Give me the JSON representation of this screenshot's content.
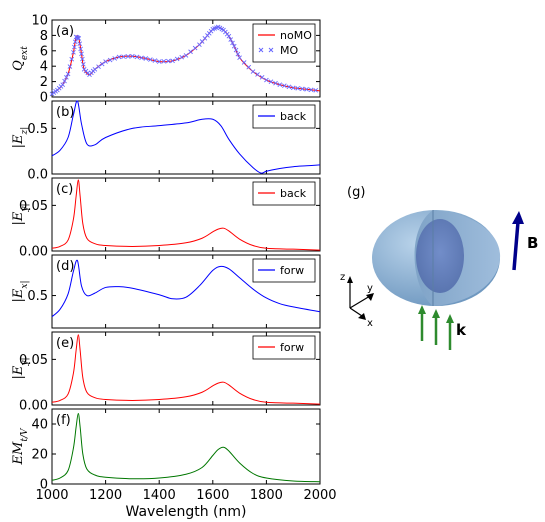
{
  "chart_data": [
    {
      "type": "line",
      "panel": "(a)",
      "ylabel": "Q_ext",
      "ylim": [
        0,
        10
      ],
      "yticks": [
        0,
        2,
        4,
        6,
        8,
        10
      ],
      "xlim": [
        1000,
        2000
      ],
      "legend": "top-right",
      "series": [
        {
          "name": "noMO",
          "style": "line",
          "color": "#ff0000",
          "x": [
            1000,
            1020,
            1040,
            1060,
            1080,
            1090,
            1100,
            1110,
            1120,
            1140,
            1160,
            1200,
            1250,
            1300,
            1350,
            1400,
            1450,
            1500,
            1550,
            1580,
            1600,
            1620,
            1640,
            1660,
            1680,
            1700,
            1750,
            1800,
            1850,
            1900,
            1950,
            2000
          ],
          "y": [
            0.4,
            0.9,
            1.6,
            3.0,
            5.8,
            7.8,
            7.6,
            5.6,
            3.6,
            2.9,
            3.6,
            4.6,
            5.2,
            5.3,
            5.0,
            4.6,
            4.7,
            5.4,
            6.8,
            8.0,
            8.8,
            9.1,
            8.7,
            7.9,
            6.6,
            5.1,
            3.3,
            2.2,
            1.6,
            1.2,
            1.0,
            0.8
          ]
        },
        {
          "name": "MO",
          "style": "markers",
          "color": "#6666ff",
          "x": [
            1000,
            1020,
            1040,
            1060,
            1080,
            1090,
            1100,
            1110,
            1120,
            1140,
            1160,
            1200,
            1250,
            1300,
            1350,
            1400,
            1450,
            1500,
            1550,
            1580,
            1600,
            1620,
            1640,
            1660,
            1680,
            1700,
            1750,
            1800,
            1850,
            1900,
            1950,
            2000
          ],
          "y": [
            0.4,
            0.9,
            1.6,
            3.0,
            5.8,
            7.8,
            7.6,
            5.6,
            3.6,
            2.9,
            3.6,
            4.6,
            5.2,
            5.3,
            5.0,
            4.6,
            4.7,
            5.4,
            6.8,
            8.0,
            8.8,
            9.1,
            8.7,
            7.9,
            6.6,
            5.1,
            3.3,
            2.2,
            1.6,
            1.2,
            1.0,
            0.8
          ]
        }
      ]
    },
    {
      "type": "line",
      "panel": "(b)",
      "ylabel": "|E_z|",
      "ylim": [
        0,
        0.8
      ],
      "yticks": [
        0.0,
        0.5
      ],
      "ytick_labels": [
        "0.0",
        "0.5"
      ],
      "xlim": [
        1000,
        2000
      ],
      "legend": "top-right",
      "series": [
        {
          "name": "back",
          "style": "line",
          "color": "#0000ff",
          "x": [
            1000,
            1030,
            1060,
            1080,
            1095,
            1110,
            1130,
            1160,
            1200,
            1300,
            1400,
            1500,
            1560,
            1600,
            1630,
            1660,
            1700,
            1750,
            1780,
            1800,
            1850,
            1900,
            1950,
            2000
          ],
          "y": [
            0.2,
            0.26,
            0.4,
            0.65,
            0.8,
            0.55,
            0.33,
            0.32,
            0.4,
            0.5,
            0.53,
            0.56,
            0.6,
            0.6,
            0.53,
            0.38,
            0.22,
            0.07,
            0.01,
            0.03,
            0.06,
            0.08,
            0.09,
            0.1
          ]
        }
      ]
    },
    {
      "type": "line",
      "panel": "(c)",
      "ylabel": "|E_y|",
      "ylim": [
        0,
        0.08
      ],
      "yticks": [
        0.0,
        0.05
      ],
      "ytick_labels": [
        "0.00",
        "0.05"
      ],
      "xlim": [
        1000,
        2000
      ],
      "legend": "top-right",
      "series": [
        {
          "name": "back",
          "style": "line",
          "color": "#ff0000",
          "x": [
            1000,
            1030,
            1060,
            1080,
            1090,
            1098,
            1105,
            1115,
            1130,
            1160,
            1200,
            1300,
            1400,
            1500,
            1560,
            1600,
            1620,
            1640,
            1660,
            1700,
            1750,
            1800,
            1900,
            2000
          ],
          "y": [
            0.003,
            0.005,
            0.012,
            0.035,
            0.06,
            0.078,
            0.06,
            0.03,
            0.014,
            0.008,
            0.006,
            0.005,
            0.006,
            0.009,
            0.014,
            0.021,
            0.024,
            0.025,
            0.022,
            0.013,
            0.006,
            0.003,
            0.002,
            0.001
          ]
        }
      ]
    },
    {
      "type": "line",
      "panel": "(d)",
      "ylabel": "|E_x|",
      "ylim": [
        0.1,
        1.0
      ],
      "yticks": [
        0.5
      ],
      "ytick_labels": [
        "0.5"
      ],
      "xlim": [
        1000,
        2000
      ],
      "legend": "top-right",
      "series": [
        {
          "name": "forw",
          "style": "line",
          "color": "#0000ff",
          "x": [
            1000,
            1030,
            1060,
            1080,
            1095,
            1110,
            1130,
            1160,
            1200,
            1250,
            1300,
            1400,
            1450,
            1500,
            1550,
            1600,
            1630,
            1660,
            1700,
            1750,
            1800,
            1850,
            1900,
            2000
          ],
          "y": [
            0.24,
            0.33,
            0.52,
            0.8,
            0.93,
            0.62,
            0.5,
            0.53,
            0.6,
            0.61,
            0.59,
            0.51,
            0.46,
            0.48,
            0.62,
            0.81,
            0.86,
            0.83,
            0.72,
            0.58,
            0.47,
            0.4,
            0.36,
            0.3
          ]
        }
      ]
    },
    {
      "type": "line",
      "panel": "(e)",
      "ylabel": "|E_y|",
      "ylim": [
        0,
        0.08
      ],
      "yticks": [
        0.0,
        0.05
      ],
      "ytick_labels": [
        "0.00",
        "0.05"
      ],
      "xlim": [
        1000,
        2000
      ],
      "legend": "top-right",
      "series": [
        {
          "name": "forw",
          "style": "line",
          "color": "#ff0000",
          "x": [
            1000,
            1030,
            1060,
            1080,
            1090,
            1098,
            1105,
            1115,
            1130,
            1160,
            1200,
            1300,
            1400,
            1500,
            1560,
            1600,
            1620,
            1640,
            1660,
            1700,
            1750,
            1800,
            1900,
            2000
          ],
          "y": [
            0.003,
            0.005,
            0.012,
            0.035,
            0.06,
            0.077,
            0.06,
            0.03,
            0.014,
            0.008,
            0.006,
            0.005,
            0.006,
            0.009,
            0.014,
            0.021,
            0.024,
            0.025,
            0.022,
            0.013,
            0.006,
            0.003,
            0.002,
            0.001
          ]
        }
      ]
    },
    {
      "type": "line",
      "panel": "(f)",
      "ylabel": "EM_t/V",
      "ylim": [
        0,
        50
      ],
      "yticks": [
        0,
        20,
        40
      ],
      "ytick_labels": [
        "0",
        "20",
        "40"
      ],
      "xlim": [
        1000,
        2000
      ],
      "xlabel": "Wavelength (nm)",
      "xticks": [
        1000,
        1200,
        1400,
        1600,
        1800,
        2000
      ],
      "xtick_labels": [
        "1000",
        "1200",
        "1400",
        "1600",
        "1800",
        "2000"
      ],
      "series": [
        {
          "name": "",
          "style": "line",
          "color": "#007700",
          "x": [
            1000,
            1030,
            1060,
            1080,
            1090,
            1098,
            1105,
            1115,
            1130,
            1160,
            1200,
            1300,
            1400,
            1500,
            1560,
            1600,
            1620,
            1640,
            1660,
            1700,
            1750,
            1800,
            1900,
            2000
          ],
          "y": [
            2.5,
            4.0,
            9.0,
            24.0,
            38.0,
            47.0,
            38.0,
            20.0,
            10.0,
            6.0,
            4.5,
            3.5,
            4.0,
            6.5,
            11.0,
            19.0,
            23.0,
            24.5,
            22.0,
            14.0,
            7.0,
            4.0,
            2.0,
            1.5
          ]
        }
      ]
    }
  ],
  "schematic": {
    "tag": "(g)",
    "field_label": "B",
    "wavevector_label": "k",
    "axis_z": "z",
    "axis_y": "y",
    "axis_x": "x",
    "colors": {
      "shell": "#8db4d8",
      "core": "#5f7fc0",
      "field": "#00008b",
      "wavevector": "#2e8b2e"
    }
  }
}
